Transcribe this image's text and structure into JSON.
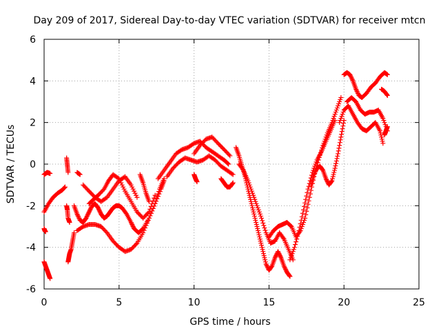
{
  "chart_data": {
    "type": "scatter",
    "title": "Day 209 of 2017, Sidereal Day-to-day VTEC variation (SDTVAR) for receiver mtcn",
    "xlabel": "GPS time / hours",
    "ylabel": "SDTVAR / TECUs",
    "xlim": [
      0,
      25
    ],
    "ylim": [
      -6,
      6
    ],
    "x_ticks": [
      0,
      5,
      10,
      15,
      20,
      25
    ],
    "y_ticks": [
      -6,
      -4,
      -2,
      0,
      2,
      4,
      6
    ],
    "grid": true,
    "marker": "+",
    "color": "#ff0000",
    "series": [
      {
        "name": "s1",
        "x": [
          0.0,
          0.1,
          0.2,
          0.3,
          0.4
        ],
        "y": [
          -4.7,
          -4.9,
          -5.1,
          -5.3,
          -5.5
        ]
      },
      {
        "name": "s2",
        "x": [
          0.0,
          0.1,
          0.2,
          0.3,
          0.4
        ],
        "y": [
          -0.5,
          -0.45,
          -0.4,
          -0.42,
          -0.45
        ]
      },
      {
        "name": "s3",
        "x": [
          0.0,
          0.05,
          0.1
        ],
        "y": [
          -3.1,
          -3.2,
          -3.25
        ]
      },
      {
        "name": "s4",
        "x": [
          0.0,
          0.3,
          0.6,
          0.9,
          1.2,
          1.4
        ],
        "y": [
          -2.3,
          -1.9,
          -1.6,
          -1.4,
          -1.25,
          -1.1
        ]
      },
      {
        "name": "s5",
        "x": [
          1.5,
          1.55,
          1.6
        ],
        "y": [
          0.3,
          -0.05,
          -0.4
        ]
      },
      {
        "name": "s6",
        "x": [
          1.6,
          1.65,
          1.7,
          1.8,
          1.9,
          2.0
        ],
        "y": [
          -4.7,
          -4.5,
          -4.3,
          -4.1,
          -3.7,
          -3.3
        ]
      },
      {
        "name": "s7",
        "x": [
          1.5,
          1.55,
          1.6,
          1.7
        ],
        "y": [
          -2.0,
          -2.2,
          -2.6,
          -2.8
        ]
      },
      {
        "name": "s8",
        "x": [
          2.0,
          2.2,
          2.4,
          2.6,
          2.8,
          3.0,
          3.2,
          3.4,
          3.6,
          3.8,
          4.0,
          4.2,
          4.4,
          4.6,
          4.8,
          5.0,
          5.2,
          5.5,
          5.8,
          6.0,
          6.3,
          6.6,
          7.0,
          7.4,
          7.7,
          8.0
        ],
        "y": [
          -2.0,
          -2.4,
          -2.7,
          -2.8,
          -2.6,
          -2.3,
          -2.0,
          -1.9,
          -2.1,
          -2.4,
          -2.6,
          -2.5,
          -2.3,
          -2.1,
          -2.0,
          -2.0,
          -2.1,
          -2.4,
          -2.8,
          -3.1,
          -3.3,
          -3.1,
          -2.6,
          -1.9,
          -1.2,
          -0.7
        ]
      },
      {
        "name": "s9",
        "x": [
          2.2,
          2.6,
          3.0,
          3.4,
          3.8,
          4.2,
          4.6,
          5.0,
          5.4,
          5.8,
          6.2,
          6.6,
          7.0,
          7.4,
          7.8,
          8.0
        ],
        "y": [
          -3.2,
          -3.0,
          -2.9,
          -2.9,
          -3.0,
          -3.3,
          -3.7,
          -4.0,
          -4.2,
          -4.1,
          -3.8,
          -3.3,
          -2.6,
          -1.9,
          -1.2,
          -0.8
        ]
      },
      {
        "name": "s10",
        "x": [
          3.0,
          3.3,
          3.6,
          4.0,
          4.3,
          4.6,
          5.0,
          5.4,
          5.8,
          6.2,
          6.6,
          7.0,
          7.4
        ],
        "y": [
          -1.9,
          -1.7,
          -1.5,
          -1.2,
          -0.8,
          -0.5,
          -0.7,
          -1.3,
          -1.8,
          -2.3,
          -2.6,
          -2.3,
          -1.5
        ]
      },
      {
        "name": "s11",
        "x": [
          2.6,
          3.0,
          3.4,
          3.8,
          4.2,
          4.6,
          5.0,
          5.4,
          5.8,
          6.2
        ],
        "y": [
          -1.0,
          -1.3,
          -1.6,
          -1.8,
          -1.6,
          -1.2,
          -0.8,
          -0.6,
          -1.0,
          -1.6
        ]
      },
      {
        "name": "s12",
        "x": [
          2.2,
          2.4
        ],
        "y": [
          -0.4,
          -0.5
        ]
      },
      {
        "name": "s13",
        "x": [
          6.4,
          6.6,
          6.8,
          7.0
        ],
        "y": [
          -0.5,
          -0.9,
          -1.4,
          -1.8
        ]
      },
      {
        "name": "s14",
        "x": [
          7.6,
          8.0,
          8.4,
          8.8,
          9.2,
          9.6,
          10.0,
          10.4,
          10.8,
          11.2,
          11.6,
          12.0,
          12.3
        ],
        "y": [
          -0.7,
          -0.3,
          0.1,
          0.5,
          0.7,
          0.8,
          1.0,
          1.1,
          0.8,
          0.6,
          0.4,
          0.2,
          0.0
        ]
      },
      {
        "name": "s15",
        "x": [
          8.2,
          8.6,
          9.0,
          9.4,
          9.8,
          10.2,
          10.6,
          11.0,
          11.4,
          11.8,
          12.2,
          12.6
        ],
        "y": [
          -0.6,
          -0.2,
          0.1,
          0.3,
          0.2,
          0.1,
          0.2,
          0.4,
          0.2,
          -0.1,
          -0.3,
          -0.5
        ]
      },
      {
        "name": "s16",
        "x": [
          10.0,
          10.4,
          10.8,
          11.2,
          11.6,
          12.0,
          12.4
        ],
        "y": [
          0.5,
          0.9,
          1.2,
          1.3,
          1.0,
          0.7,
          0.4
        ]
      },
      {
        "name": "s17",
        "x": [
          10.0,
          10.1,
          10.2
        ],
        "y": [
          -0.5,
          -0.7,
          -0.85
        ]
      },
      {
        "name": "s18",
        "x": [
          11.8,
          12.0,
          12.2,
          12.4,
          12.6
        ],
        "y": [
          -0.7,
          -0.9,
          -1.1,
          -1.1,
          -0.9
        ]
      },
      {
        "name": "s19",
        "x": [
          12.8,
          13.0,
          13.2,
          13.4,
          13.6,
          13.8,
          14.0,
          14.2,
          14.4,
          14.6,
          14.8,
          15.0,
          15.2,
          15.4,
          15.6,
          15.8,
          16.0,
          16.2,
          16.4
        ],
        "y": [
          0.8,
          0.4,
          -0.1,
          -0.6,
          -1.2,
          -1.8,
          -2.4,
          -3.0,
          -3.6,
          -4.2,
          -4.8,
          -5.1,
          -4.9,
          -4.5,
          -4.2,
          -4.5,
          -4.9,
          -5.2,
          -5.4
        ]
      },
      {
        "name": "s20",
        "x": [
          13.0,
          13.3,
          13.6,
          13.9,
          14.2,
          14.5,
          14.8,
          15.1,
          15.4,
          15.7,
          16.0,
          16.3,
          16.6
        ],
        "y": [
          0.0,
          -0.3,
          -0.8,
          -1.4,
          -2.0,
          -2.6,
          -3.3,
          -3.8,
          -3.7,
          -3.3,
          -3.6,
          -4.1,
          -4.6
        ]
      },
      {
        "name": "s21",
        "x": [
          15.0,
          15.3,
          15.6,
          15.9,
          16.2,
          16.5,
          16.8,
          17.1,
          17.4,
          17.7,
          18.0,
          18.3,
          18.6,
          18.9,
          19.2,
          19.5,
          19.8
        ],
        "y": [
          -3.5,
          -3.2,
          -3.0,
          -2.9,
          -2.8,
          -3.0,
          -3.5,
          -3.2,
          -2.6,
          -1.6,
          -0.6,
          0.2,
          0.9,
          1.5,
          2.0,
          2.6,
          3.2
        ]
      },
      {
        "name": "s22",
        "x": [
          16.4,
          16.7,
          17.0,
          17.3,
          17.6,
          17.9,
          18.2,
          18.5,
          18.8,
          19.1,
          19.4
        ],
        "y": [
          -4.6,
          -4.0,
          -3.2,
          -2.2,
          -1.2,
          -0.4,
          0.2,
          0.6,
          1.1,
          1.6,
          2.1
        ]
      },
      {
        "name": "s23",
        "x": [
          17.8,
          18.0,
          18.2,
          18.4,
          18.6,
          18.8,
          19.0,
          19.2,
          19.4,
          19.6,
          19.8,
          20.0
        ],
        "y": [
          -1.0,
          -0.5,
          -0.2,
          -0.1,
          -0.3,
          -0.7,
          -1.0,
          -0.8,
          -0.2,
          0.5,
          1.3,
          2.1
        ]
      },
      {
        "name": "s24",
        "x": [
          20.0,
          20.2,
          20.4,
          20.6,
          20.8,
          21.0,
          21.2,
          21.5,
          21.8,
          22.1,
          22.4,
          22.7,
          22.9
        ],
        "y": [
          4.3,
          4.4,
          4.3,
          4.0,
          3.6,
          3.3,
          3.2,
          3.4,
          3.7,
          3.9,
          4.2,
          4.4,
          4.3
        ]
      },
      {
        "name": "s25",
        "x": [
          20.2,
          20.5,
          20.8,
          21.1,
          21.4,
          21.7,
          22.0,
          22.3,
          22.6,
          22.9
        ],
        "y": [
          3.0,
          3.2,
          3.0,
          2.6,
          2.4,
          2.5,
          2.5,
          2.6,
          2.2,
          1.6
        ]
      },
      {
        "name": "s26",
        "x": [
          19.7,
          20.0,
          20.3,
          20.6,
          20.9,
          21.2,
          21.5,
          21.8,
          22.1,
          22.4,
          22.6
        ],
        "y": [
          2.0,
          2.6,
          2.8,
          2.4,
          2.0,
          1.7,
          1.6,
          1.8,
          2.0,
          1.6,
          1.0
        ]
      },
      {
        "name": "s27",
        "x": [
          22.5,
          22.7,
          22.9
        ],
        "y": [
          3.6,
          3.5,
          3.3
        ]
      },
      {
        "name": "s28",
        "x": [
          22.7,
          22.8,
          22.9
        ],
        "y": [
          1.4,
          1.6,
          1.8
        ]
      }
    ]
  }
}
